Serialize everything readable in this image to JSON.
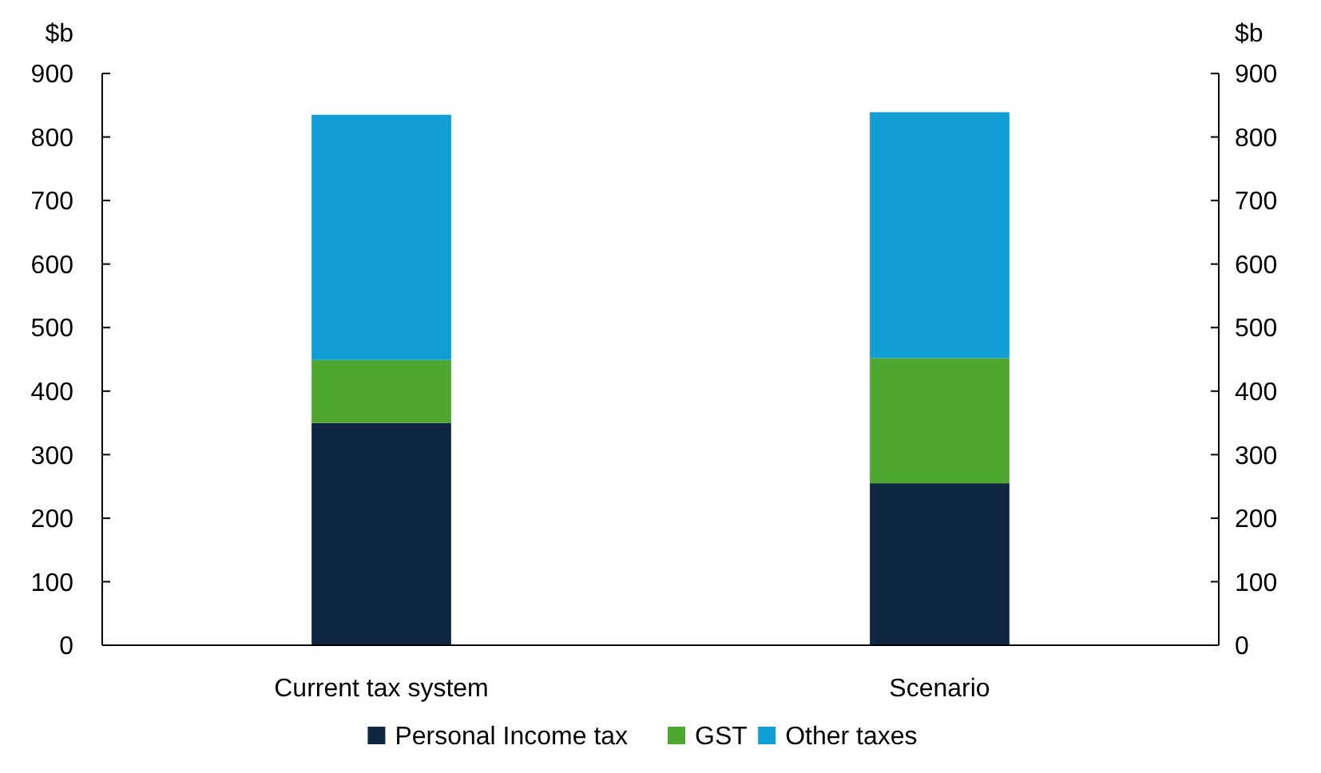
{
  "chart_data": {
    "type": "bar",
    "stacked": true,
    "ylabel": "$b",
    "y2label": "$b",
    "categories": [
      "Current tax system",
      "Scenario"
    ],
    "series": [
      {
        "name": "Personal Income tax",
        "color": "#0f2741",
        "values": [
          350,
          255
        ]
      },
      {
        "name": "GST",
        "color": "#4ea72e",
        "values": [
          99,
          197
        ]
      },
      {
        "name": "Other taxes",
        "color": "#119ed5",
        "values": [
          386,
          387
        ]
      }
    ],
    "ylim": [
      0,
      900
    ],
    "yticks": [
      0,
      100,
      200,
      300,
      400,
      500,
      600,
      700,
      800,
      900
    ],
    "y2lim": [
      0,
      900
    ],
    "y2ticks": [
      0,
      100,
      200,
      300,
      400,
      500,
      600,
      700,
      800,
      900
    ],
    "legend": "bottom",
    "grid": false
  }
}
